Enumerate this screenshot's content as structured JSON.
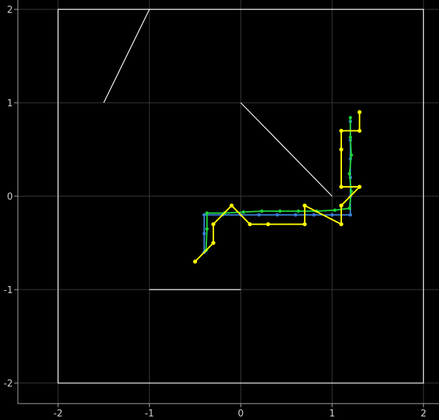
{
  "chart_data": {
    "type": "line",
    "grid": true,
    "background": "#000000",
    "grid_color": "#3a3a3a",
    "axis_color": "#aaaaaa",
    "xlim": [
      -2.44,
      2.17
    ],
    "ylim": [
      -2.22,
      2.1
    ],
    "x_ticks": [
      {
        "value": -2,
        "label": "-2"
      },
      {
        "value": -1,
        "label": "-1"
      },
      {
        "value": 0,
        "label": "0"
      },
      {
        "value": 1,
        "label": "1"
      },
      {
        "value": 2,
        "label": "2"
      }
    ],
    "y_ticks": [
      {
        "value": 2,
        "label": "2"
      },
      {
        "value": 1,
        "label": "1"
      },
      {
        "value": 0,
        "label": "0"
      },
      {
        "value": -1,
        "label": "-1"
      },
      {
        "value": -2,
        "label": "-2"
      }
    ],
    "shapes": [
      {
        "name": "boundary-box",
        "color": "#ffffff",
        "closed": true,
        "points": [
          [
            -2,
            2
          ],
          [
            2,
            2
          ],
          [
            2,
            -2
          ],
          [
            -2,
            -2
          ]
        ]
      },
      {
        "name": "wall-diagonal-left",
        "color": "#ffffff",
        "closed": false,
        "points": [
          [
            -1.5,
            1.0
          ],
          [
            -1.0,
            2.0
          ]
        ]
      },
      {
        "name": "wall-diagonal-right",
        "color": "#ffffff",
        "closed": false,
        "points": [
          [
            0,
            1.0
          ],
          [
            1.0,
            0
          ]
        ]
      },
      {
        "name": "wall-horizontal",
        "color": "#ffffff",
        "closed": false,
        "points": [
          [
            -1.0,
            -1.0
          ],
          [
            0,
            -1.0
          ]
        ]
      }
    ],
    "series": [
      {
        "color": "#3a7fd5",
        "marker_size": 2.4,
        "points": [
          [
            -0.4,
            -0.6
          ],
          [
            -0.4,
            -0.4
          ],
          [
            -0.4,
            -0.2
          ],
          [
            -0.2,
            -0.2
          ],
          [
            0.0,
            -0.2
          ],
          [
            0.2,
            -0.2
          ],
          [
            0.4,
            -0.2
          ],
          [
            0.6,
            -0.2
          ],
          [
            0.8,
            -0.2
          ],
          [
            1.0,
            -0.2
          ],
          [
            1.2,
            -0.2
          ],
          [
            1.2,
            0.0
          ],
          [
            1.2,
            0.2
          ],
          [
            1.2,
            0.4
          ],
          [
            1.2,
            0.6
          ],
          [
            1.2,
            0.8
          ]
        ]
      },
      {
        "color": "#1fd13a",
        "marker_size": 2.4,
        "points": [
          [
            -0.38,
            -0.58
          ],
          [
            -0.37,
            -0.35
          ],
          [
            -0.37,
            -0.18
          ],
          [
            -0.18,
            -0.18
          ],
          [
            0.03,
            -0.17
          ],
          [
            0.23,
            -0.16
          ],
          [
            0.43,
            -0.16
          ],
          [
            0.63,
            -0.16
          ],
          [
            0.83,
            -0.16
          ],
          [
            1.03,
            -0.15
          ],
          [
            1.19,
            -0.13
          ],
          [
            1.21,
            0.05
          ],
          [
            1.19,
            0.24
          ],
          [
            1.21,
            0.44
          ],
          [
            1.2,
            0.63
          ],
          [
            1.2,
            0.84
          ]
        ]
      },
      {
        "color": "#ffff00",
        "marker_size": 2.8,
        "points": [
          [
            -0.5,
            -0.7
          ],
          [
            -0.3,
            -0.5
          ],
          [
            -0.3,
            -0.3
          ],
          [
            -0.1,
            -0.1
          ],
          [
            0.1,
            -0.3
          ],
          [
            0.3,
            -0.3
          ],
          [
            0.7,
            -0.3
          ],
          [
            0.7,
            -0.1
          ],
          [
            1.1,
            -0.3
          ],
          [
            1.1,
            -0.1
          ],
          [
            1.3,
            0.1
          ],
          [
            1.1,
            0.1
          ],
          [
            1.1,
            0.5
          ],
          [
            1.1,
            0.7
          ],
          [
            1.3,
            0.7
          ],
          [
            1.3,
            0.9
          ]
        ]
      }
    ]
  }
}
